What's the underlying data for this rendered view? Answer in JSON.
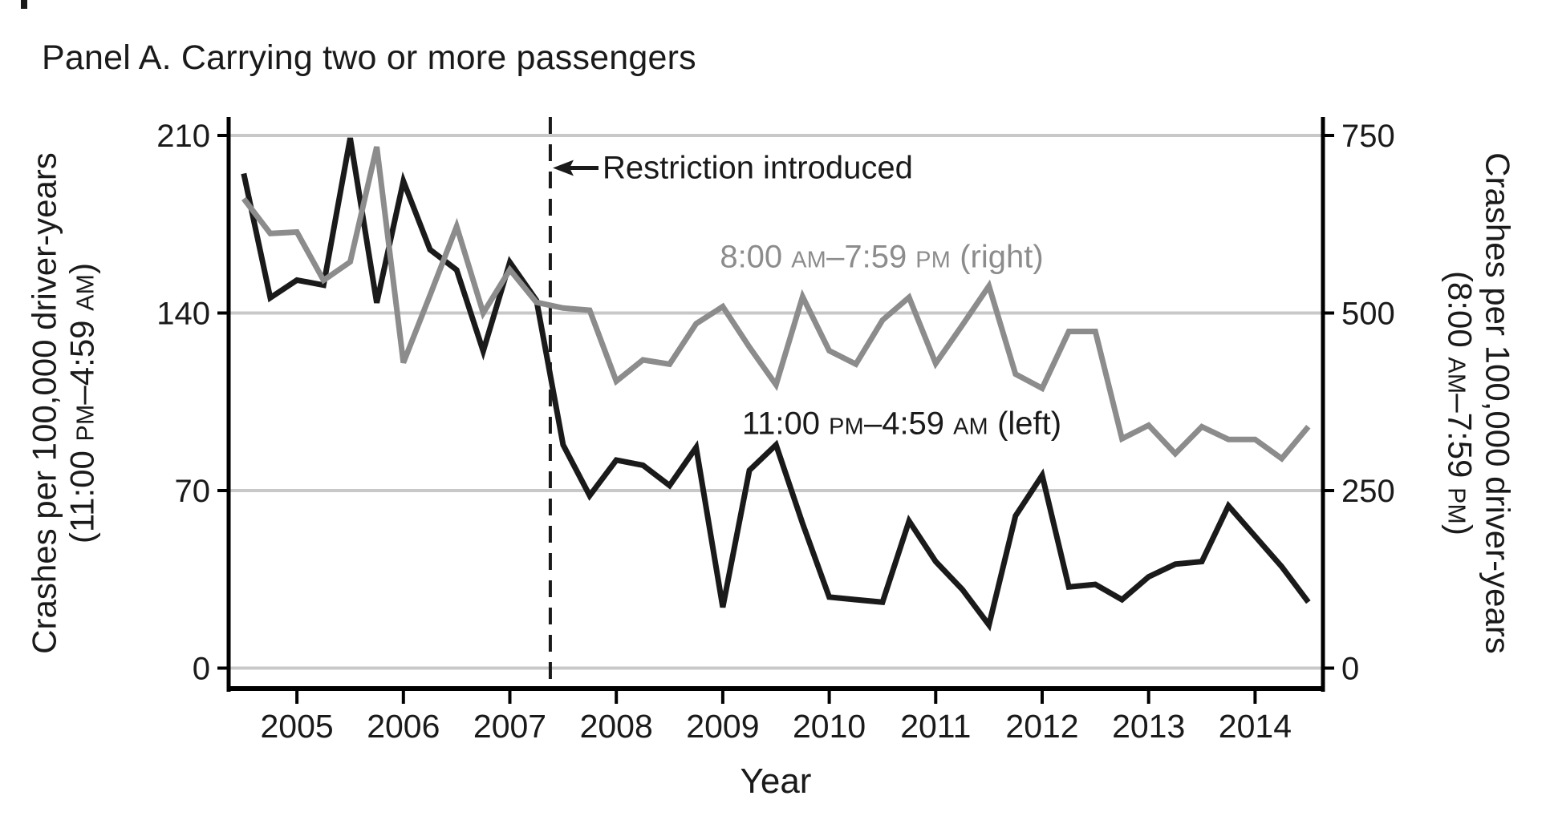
{
  "title": "Panel A. Carrying two or more passengers",
  "left_axis": {
    "label_line1": "Crashes per 100,000 driver-years",
    "label_line2": "(11:00 PM–4:59 AM)"
  },
  "right_axis": {
    "label_line1": "Crashes per 100,000 driver-years",
    "label_line2": "(8:00 AM–7:59 PM)"
  },
  "x_axis": {
    "label": "Year"
  },
  "annotation": {
    "text": "Restriction introduced"
  },
  "legend": {
    "gray_label": "8:00 AM–7:59 PM (right)",
    "black_label": "11:00 PM–4:59 AM (left)"
  },
  "colors": {
    "black_series": "#1a1a1a",
    "gray_series": "#8c8c8c",
    "gridline": "#c8c8c8",
    "axis": "#000000"
  },
  "chart_data": {
    "type": "line",
    "title": "Panel A. Carrying two or more passengers",
    "xlabel": "Year",
    "x_start": 2004.5,
    "x_step": 0.25,
    "x_ticks": [
      2005,
      2006,
      2007,
      2008,
      2009,
      2010,
      2011,
      2012,
      2013,
      2014
    ],
    "x_range": [
      2004.36,
      2014.64
    ],
    "grid": true,
    "restriction_year": 2007.38,
    "left_axis_ticks": [
      0,
      70,
      140,
      210
    ],
    "left_axis_range": [
      0,
      217
    ],
    "right_axis_ticks": [
      0,
      250,
      500,
      750
    ],
    "right_axis_range": [
      0,
      775
    ],
    "legend_position": "inline-text-labels",
    "series": [
      {
        "name": "11:00 PM–4:59 AM (left)",
        "axis": "left",
        "color": "#1a1a1a",
        "values": [
          195,
          146,
          153,
          151,
          209,
          144,
          192,
          165,
          157,
          125,
          160,
          145,
          88,
          68,
          82,
          80,
          72,
          87,
          24,
          78,
          88,
          57,
          28,
          27,
          26,
          58,
          42,
          31,
          17,
          60,
          76,
          32,
          33,
          27,
          36,
          41,
          42,
          64,
          52,
          40,
          26
        ]
      },
      {
        "name": "8:00 AM–7:59 PM (right)",
        "axis": "right",
        "color": "#8c8c8c",
        "values": [
          661,
          612,
          614,
          546,
          572,
          734,
          430,
          525,
          622,
          500,
          561,
          515,
          507,
          504,
          404,
          434,
          428,
          485,
          509,
          452,
          399,
          523,
          447,
          428,
          490,
          522,
          429,
          483,
          538,
          414,
          394,
          474,
          474,
          323,
          342,
          302,
          340,
          322,
          322,
          295,
          340
        ]
      }
    ]
  }
}
